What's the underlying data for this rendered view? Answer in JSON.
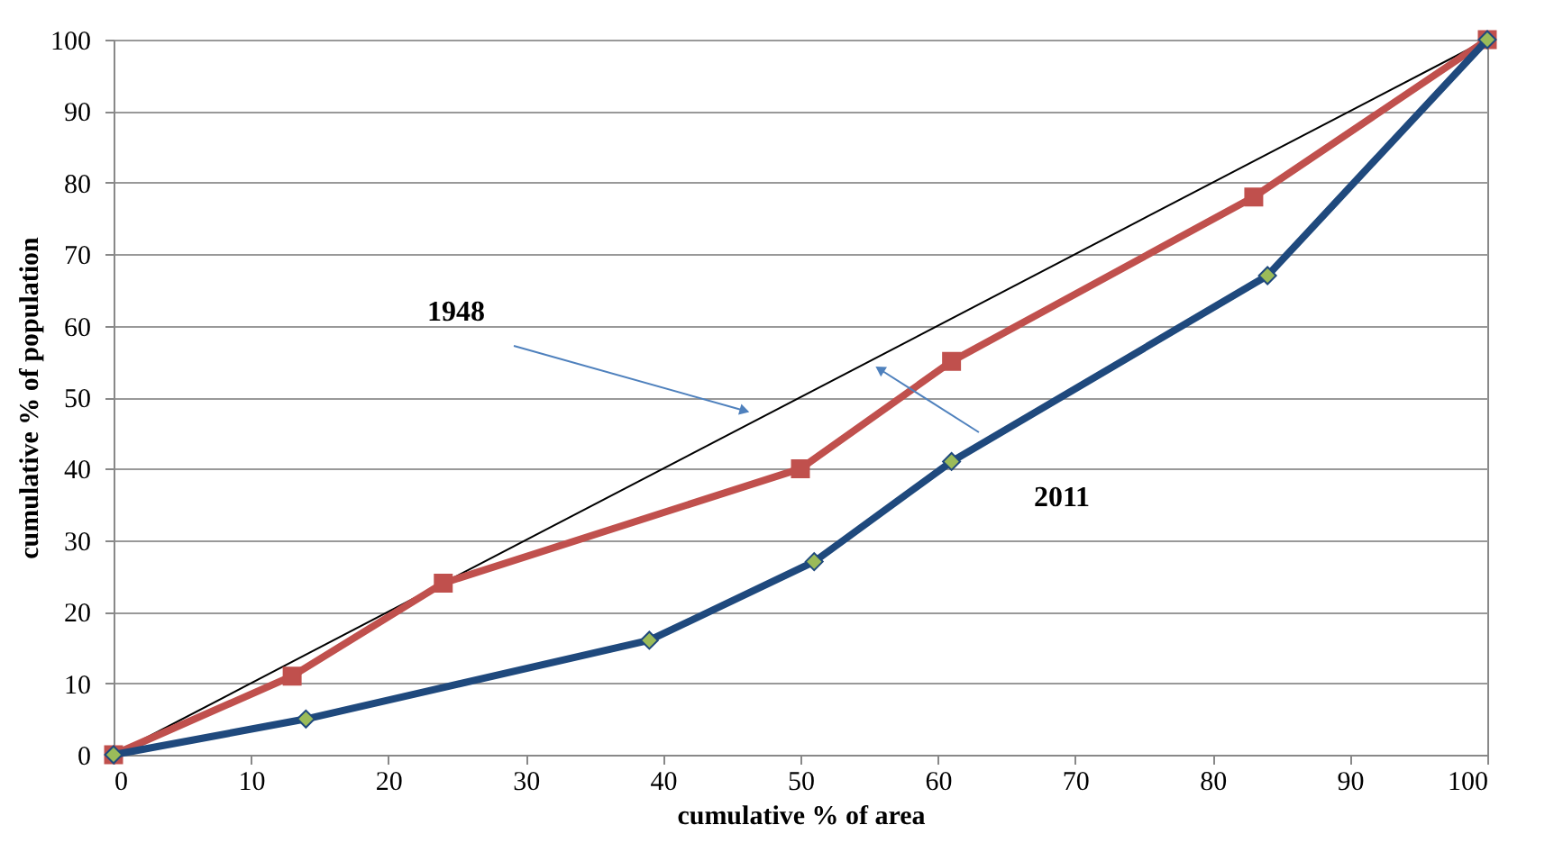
{
  "chart_data": {
    "type": "line",
    "xlabel": "cumulative % of area",
    "ylabel": "cumulative % of population",
    "xlim": [
      0,
      100
    ],
    "ylim": [
      0,
      100
    ],
    "xticks": [
      0,
      10,
      20,
      30,
      40,
      50,
      60,
      70,
      80,
      90,
      100
    ],
    "yticks": [
      0,
      10,
      20,
      30,
      40,
      50,
      60,
      70,
      80,
      90,
      100
    ],
    "grid": "y",
    "line_style": "solid",
    "series": [
      {
        "color": "#000000",
        "x": [
          0,
          100
        ],
        "values": [
          0,
          100
        ],
        "marker": "none"
      },
      {
        "color": "#c0504d",
        "x": [
          0,
          13,
          24,
          50,
          61,
          83,
          100
        ],
        "values": [
          0,
          11,
          24,
          40,
          55,
          78,
          100
        ],
        "marker": "square"
      },
      {
        "color": "#1f497d",
        "x": [
          0,
          14,
          39,
          51,
          61,
          84,
          100
        ],
        "values": [
          0,
          5,
          16,
          27,
          41,
          67,
          100
        ],
        "marker": "diamond"
      }
    ],
    "annotations": [
      "1948",
      "2011"
    ]
  }
}
